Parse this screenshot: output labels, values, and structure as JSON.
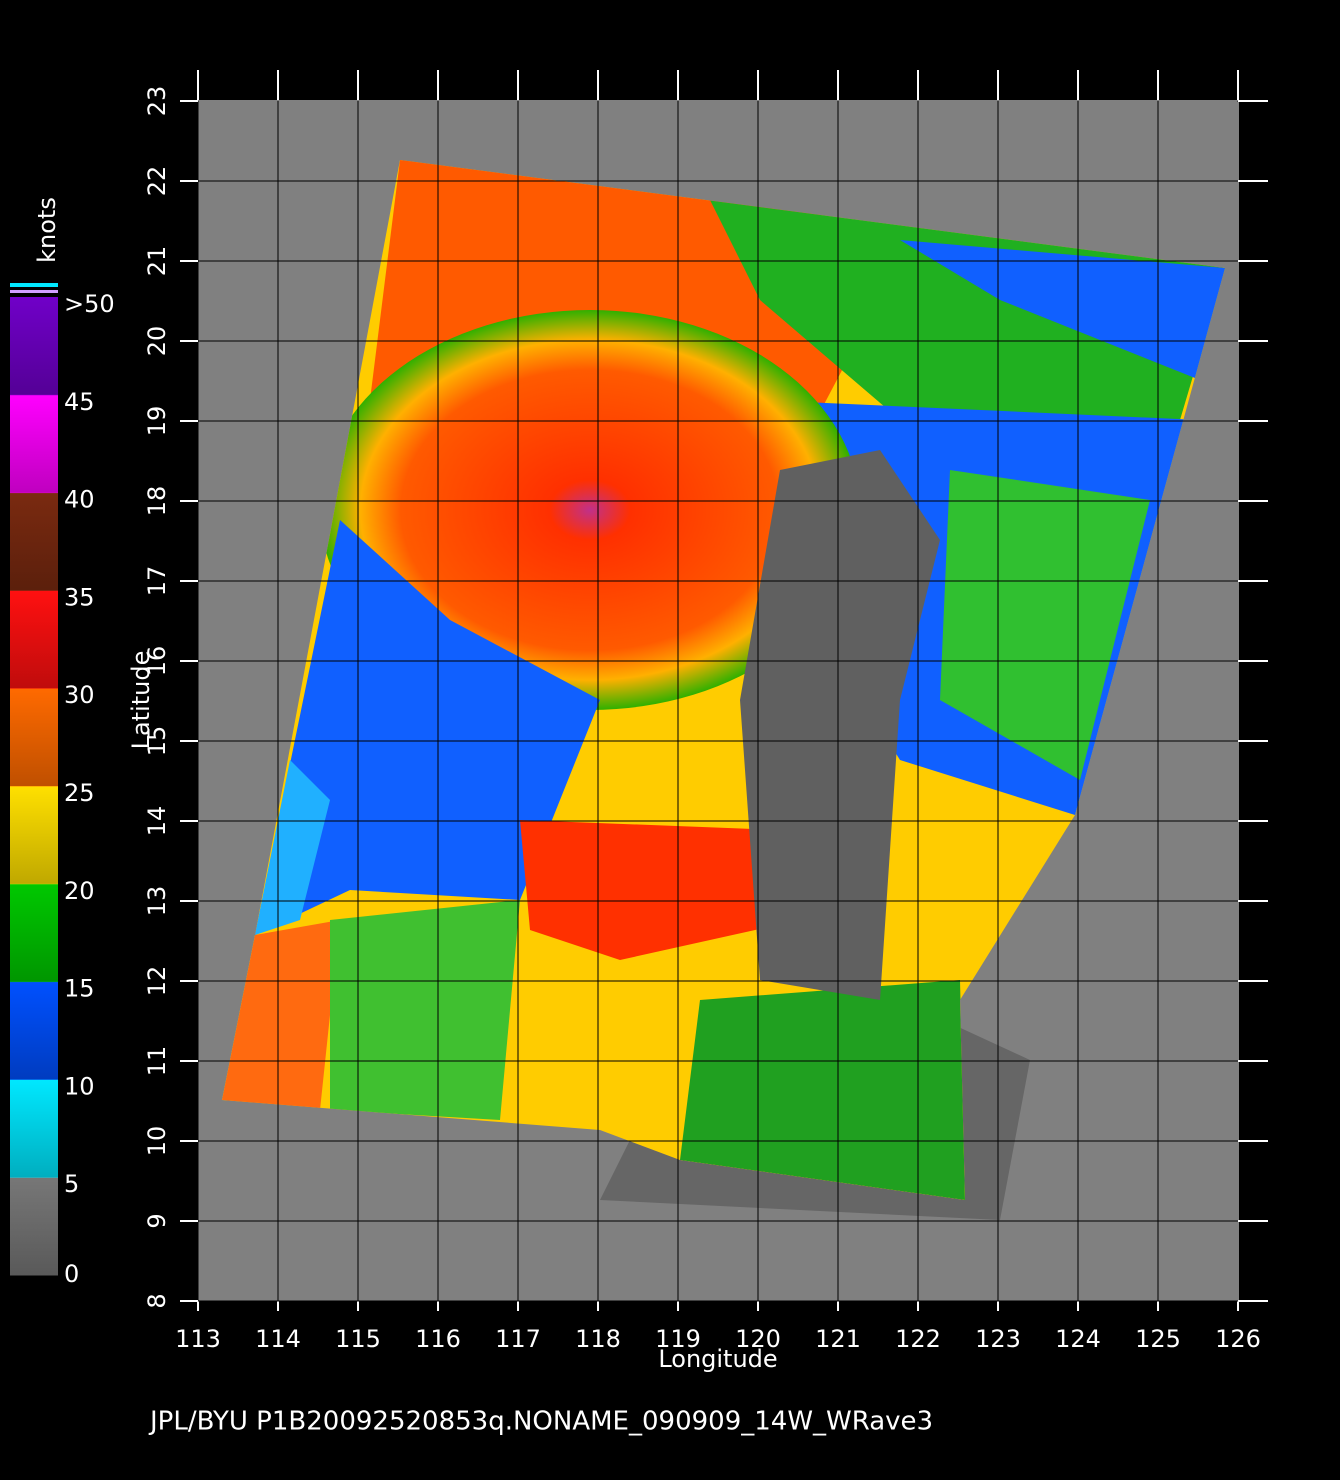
{
  "chart_data": {
    "type": "map",
    "xlabel": "Longitude",
    "ylabel": "Latitude",
    "xlim": [
      113,
      126
    ],
    "xticks": [
      113,
      114,
      115,
      116,
      117,
      118,
      119,
      120,
      121,
      122,
      123,
      124,
      125,
      126
    ],
    "ylim": [
      8,
      23
    ],
    "yticks": [
      8,
      9,
      10,
      11,
      12,
      13,
      14,
      15,
      16,
      17,
      18,
      19,
      20,
      21,
      22,
      23
    ],
    "grid": true,
    "footer": "JPL/BYU  P1B20092520853q.NONAME_090909_14W_WRave3",
    "colorbar": {
      "title": "knots",
      "lim": [
        0,
        50
      ],
      "ticks": [
        0,
        5,
        10,
        15,
        20,
        25,
        30,
        35,
        40,
        {
          "value": 45,
          "label": "45"
        },
        {
          "value": 50,
          "label": ">50"
        }
      ],
      "colors": [
        "#777777",
        "#00e8ff",
        "#0050ff",
        "#00c800",
        "#ffe000",
        "#ff6a00",
        "#ff1010",
        "#7a2a10",
        "#ff00ff",
        "#7000c8"
      ]
    }
  }
}
